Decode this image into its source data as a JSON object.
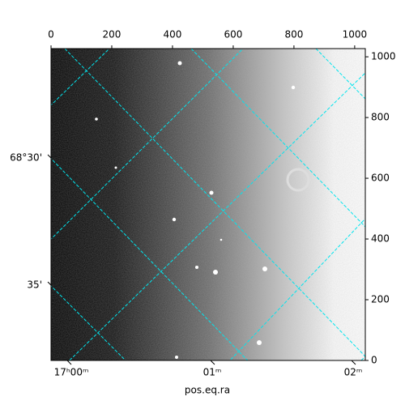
{
  "chart_data": {
    "type": "image",
    "xlabel": "pos.eq.ra",
    "xlim": [
      0,
      1035
    ],
    "ylim": [
      0,
      1027
    ],
    "xticks": [
      0,
      200,
      400,
      600,
      800,
      1000
    ],
    "yticks": [
      0,
      200,
      400,
      600,
      800,
      1000
    ],
    "ra_labels": [
      "17ʰ00ᵐ",
      "01ᵐ",
      "02ᵐ"
    ],
    "dec_labels": [
      "68°30'",
      "35'"
    ],
    "grid_color": "#00e5ee"
  }
}
